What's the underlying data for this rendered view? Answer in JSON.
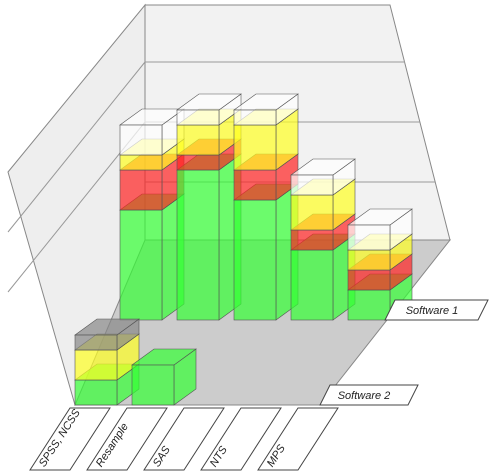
{
  "chart_data": {
    "type": "bar3d",
    "rows": [
      "Software 1",
      "Software 2"
    ],
    "categories": [
      "SPSS, NCSS",
      "Resample",
      "SAS",
      "NTS",
      "MPS"
    ],
    "series": [
      {
        "color": "#33ff33",
        "values": [
          [
            110,
            150,
            120,
            70,
            30
          ],
          [
            25,
            40,
            0,
            0,
            0
          ]
        ]
      },
      {
        "color": "#ff2222",
        "values": [
          [
            40,
            15,
            30,
            20,
            20
          ],
          [
            0,
            0,
            0,
            0,
            0
          ]
        ]
      },
      {
        "color": "#ffff22",
        "values": [
          [
            15,
            30,
            45,
            35,
            20
          ],
          [
            30,
            0,
            0,
            0,
            0
          ]
        ]
      },
      {
        "color": "#ffffff",
        "values": [
          [
            30,
            15,
            15,
            20,
            25
          ],
          [
            0,
            0,
            0,
            0,
            0
          ]
        ]
      },
      {
        "color": "#888888",
        "values": [
          [
            0,
            0,
            0,
            0,
            0
          ],
          [
            15,
            0,
            0,
            0,
            0
          ]
        ]
      }
    ]
  }
}
